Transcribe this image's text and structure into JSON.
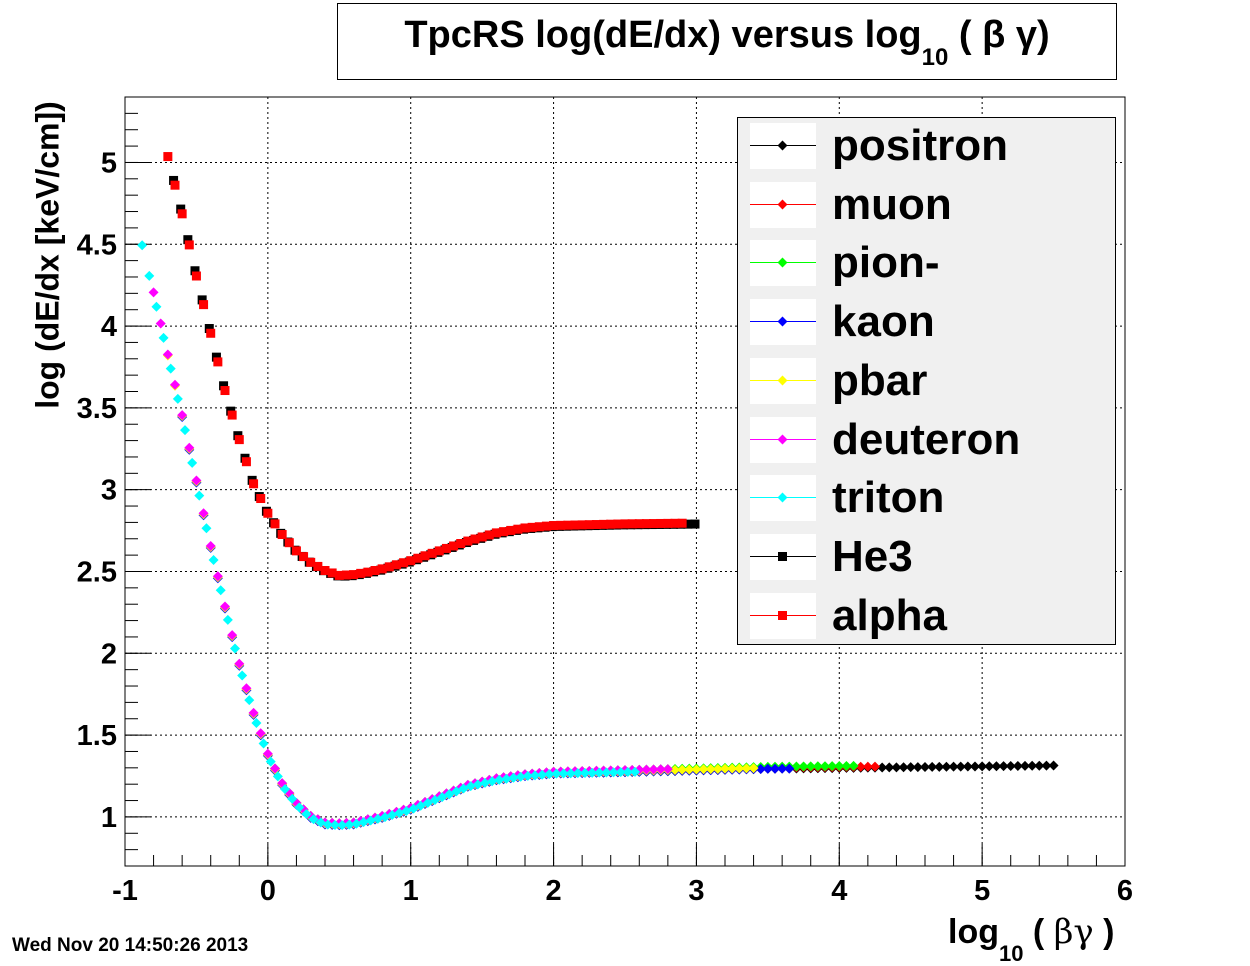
{
  "title": {
    "main": "TpcRS log(dE/dx) versus log",
    "sub": "10",
    "rest": " (   β γ)"
  },
  "datestamp": "Wed Nov 20 14:50:26 2013",
  "chart_data": {
    "type": "scatter",
    "title": "TpcRS log(dE/dx) versus log10 (βγ)",
    "xlabel": "log10 (βγ )",
    "ylabel": "log (dE/dx [keV/cm])",
    "xlabel_parts": {
      "pre": "log",
      "sub": "10",
      "post": " ( ",
      "greek": "βγ",
      "end": "  )"
    },
    "xlim": [
      -1,
      6
    ],
    "ylim": [
      0.7,
      5.4
    ],
    "x_ticks": [
      -1,
      0,
      1,
      2,
      3,
      4,
      5,
      6
    ],
    "y_ticks": [
      1,
      1.5,
      2,
      2.5,
      3,
      3.5,
      4,
      4.5,
      5
    ],
    "grid": true,
    "legend_position": "top-right",
    "series": [
      {
        "name": "positron",
        "color": "#000000",
        "marker": "diamond",
        "x_range": [
          2.35,
          5.5
        ]
      },
      {
        "name": "muon",
        "color": "#ff0000",
        "marker": "diamond",
        "x_range": [
          0.15,
          4.25
        ]
      },
      {
        "name": "pion-",
        "color": "#00ff00",
        "marker": "diamond",
        "x_range": [
          0.05,
          4.1
        ]
      },
      {
        "name": "kaon",
        "color": "#0000ff",
        "marker": "diamond",
        "x_range": [
          -0.6,
          3.65
        ]
      },
      {
        "name": "pbar",
        "color": "#ffff00",
        "marker": "diamond",
        "x_range": [
          -0.7,
          3.4
        ]
      },
      {
        "name": "deuteron",
        "color": "#ff00ff",
        "marker": "diamond",
        "x_range": [
          -0.8,
          2.8
        ]
      },
      {
        "name": "triton",
        "color": "#00ffff",
        "marker": "diamond",
        "x_range": [
          -0.88,
          2.6
        ]
      },
      {
        "name": "He3",
        "color": "#000000",
        "marker": "square",
        "x_range": [
          -0.66,
          3.0
        ]
      },
      {
        "name": "alpha",
        "color": "#ff0000",
        "marker": "square",
        "x_range": [
          -0.7,
          2.9
        ]
      }
    ],
    "curve_singly_charged": {
      "x": [
        -0.88,
        -0.8,
        -0.7,
        -0.6,
        -0.5,
        -0.4,
        -0.3,
        -0.2,
        -0.1,
        0.0,
        0.1,
        0.2,
        0.3,
        0.4,
        0.5,
        0.6,
        0.7,
        0.8,
        1.0,
        1.2,
        1.4,
        1.6,
        1.8,
        2.0,
        2.5,
        3.0,
        3.5,
        4.0,
        4.5,
        5.0,
        5.5
      ],
      "y": [
        4.5,
        4.2,
        3.82,
        3.45,
        3.05,
        2.65,
        2.28,
        1.93,
        1.63,
        1.38,
        1.2,
        1.08,
        1.0,
        0.96,
        0.955,
        0.96,
        0.98,
        1.0,
        1.05,
        1.12,
        1.19,
        1.23,
        1.255,
        1.27,
        1.28,
        1.29,
        1.3,
        1.305,
        1.31,
        1.315,
        1.32
      ]
    },
    "curve_doubly_charged": {
      "x": [
        -0.7,
        -0.6,
        -0.5,
        -0.4,
        -0.3,
        -0.2,
        -0.1,
        0.0,
        0.1,
        0.2,
        0.3,
        0.4,
        0.5,
        0.6,
        0.7,
        0.8,
        1.0,
        1.2,
        1.4,
        1.6,
        1.8,
        2.0,
        2.5,
        3.0
      ],
      "y": [
        5.03,
        4.68,
        4.3,
        3.95,
        3.6,
        3.3,
        3.03,
        2.85,
        2.72,
        2.62,
        2.55,
        2.5,
        2.47,
        2.475,
        2.49,
        2.51,
        2.56,
        2.62,
        2.68,
        2.73,
        2.76,
        2.775,
        2.785,
        2.79
      ]
    }
  }
}
